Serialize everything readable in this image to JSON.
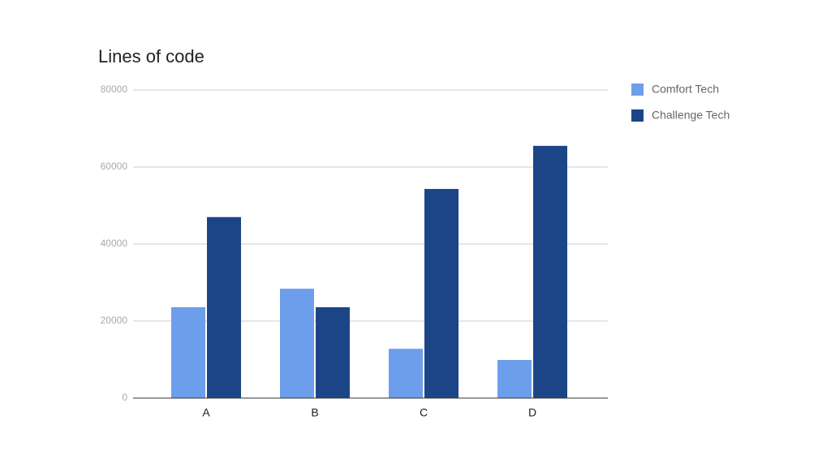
{
  "chart_data": {
    "type": "bar",
    "title": "Lines of code",
    "categories": [
      "A",
      "B",
      "C",
      "D"
    ],
    "series": [
      {
        "name": "Comfort Tech",
        "color": "#6d9eeb",
        "values": [
          23600,
          28400,
          12800,
          9900
        ]
      },
      {
        "name": "Challenge Tech",
        "color": "#1c4587",
        "values": [
          47000,
          23600,
          54300,
          65500
        ]
      }
    ],
    "ylim": [
      0,
      80000
    ],
    "yticks": [
      0,
      20000,
      40000,
      60000,
      80000
    ],
    "grid": true,
    "legend": "right"
  }
}
